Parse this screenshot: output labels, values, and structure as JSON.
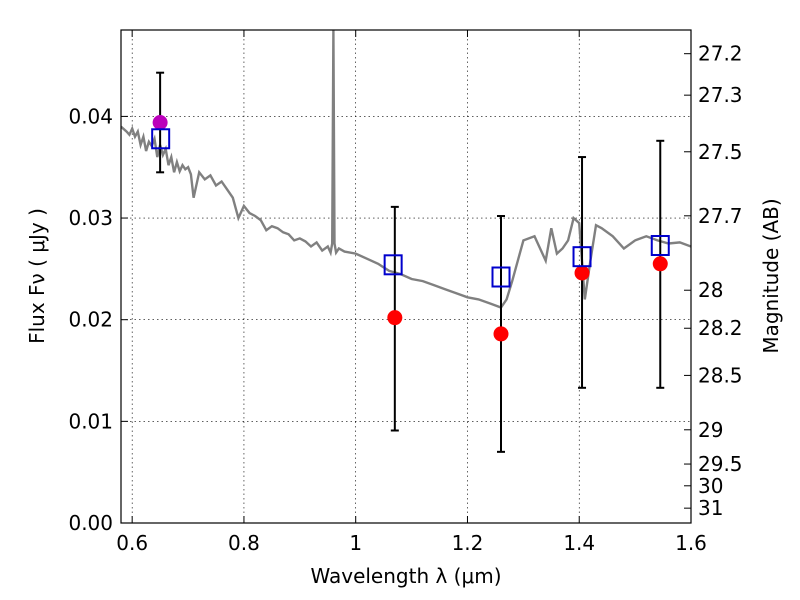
{
  "chart_data": {
    "type": "scatter",
    "xlabel": "Wavelength  λ (μm)",
    "ylabel": "Flux  Fν  ( μJy )",
    "y2label": "Magnitude (AB)",
    "xlim": [
      0.58,
      1.6
    ],
    "ylim": [
      0.0,
      0.0485
    ],
    "grid": true,
    "x_ticks": [
      0.6,
      0.8,
      1.0,
      1.2,
      1.4,
      1.6
    ],
    "x_tick_labels": [
      "0.6",
      "0.8",
      "1",
      "1.2",
      "1.4",
      "1.6"
    ],
    "y_ticks": [
      0.0,
      0.01,
      0.02,
      0.03,
      0.04
    ],
    "y_tick_labels": [
      "0.00",
      "0.01",
      "0.02",
      "0.03",
      "0.04"
    ],
    "mag_ticks": [
      {
        "flux": 0.04617,
        "label": "27.2"
      },
      {
        "flux": 0.04209,
        "label": "27.3"
      },
      {
        "flux": 0.03652,
        "label": "27.5"
      },
      {
        "flux": 0.03022,
        "label": "27.7"
      },
      {
        "flux": 0.0229,
        "label": "28"
      },
      {
        "flux": 0.01916,
        "label": "28.2"
      },
      {
        "flux": 0.01452,
        "label": "28.5"
      },
      {
        "flux": 0.00917,
        "label": "29"
      },
      {
        "flux": 0.0058,
        "label": "29.5"
      },
      {
        "flux": 0.00366,
        "label": "30"
      },
      {
        "flux": 0.00146,
        "label": "31"
      }
    ],
    "model_spectrum": {
      "color": "#808080",
      "x": [
        0.58,
        0.59,
        0.595,
        0.6,
        0.605,
        0.61,
        0.615,
        0.62,
        0.625,
        0.63,
        0.635,
        0.64,
        0.645,
        0.65,
        0.655,
        0.66,
        0.665,
        0.67,
        0.675,
        0.68,
        0.685,
        0.69,
        0.695,
        0.7,
        0.705,
        0.71,
        0.72,
        0.73,
        0.74,
        0.75,
        0.76,
        0.77,
        0.78,
        0.79,
        0.8,
        0.81,
        0.82,
        0.83,
        0.84,
        0.85,
        0.86,
        0.87,
        0.88,
        0.89,
        0.9,
        0.91,
        0.92,
        0.93,
        0.94,
        0.95,
        0.955,
        0.958,
        0.96,
        0.962,
        0.965,
        0.97,
        0.98,
        1.0,
        1.02,
        1.04,
        1.06,
        1.08,
        1.1,
        1.12,
        1.14,
        1.16,
        1.18,
        1.2,
        1.22,
        1.24,
        1.26,
        1.27,
        1.28,
        1.3,
        1.32,
        1.34,
        1.35,
        1.36,
        1.37,
        1.38,
        1.39,
        1.4,
        1.41,
        1.42,
        1.43,
        1.44,
        1.46,
        1.48,
        1.5,
        1.52,
        1.54,
        1.56,
        1.58,
        1.6
      ],
      "y": [
        0.039,
        0.0385,
        0.0382,
        0.0388,
        0.038,
        0.0385,
        0.0372,
        0.038,
        0.0366,
        0.0375,
        0.0371,
        0.0378,
        0.036,
        0.0372,
        0.0362,
        0.0368,
        0.0352,
        0.036,
        0.0345,
        0.0355,
        0.0346,
        0.0352,
        0.0348,
        0.035,
        0.0343,
        0.032,
        0.0345,
        0.0338,
        0.0342,
        0.0332,
        0.0336,
        0.0328,
        0.032,
        0.03,
        0.0312,
        0.0305,
        0.0302,
        0.0298,
        0.0288,
        0.0292,
        0.029,
        0.0286,
        0.0284,
        0.0278,
        0.028,
        0.0277,
        0.0272,
        0.0276,
        0.0268,
        0.0272,
        0.0266,
        0.0275,
        0.05,
        0.0275,
        0.0266,
        0.027,
        0.0267,
        0.0265,
        0.026,
        0.0255,
        0.0248,
        0.0245,
        0.024,
        0.0238,
        0.0234,
        0.023,
        0.0226,
        0.0222,
        0.022,
        0.0216,
        0.0212,
        0.022,
        0.0238,
        0.0278,
        0.0282,
        0.0258,
        0.029,
        0.0265,
        0.027,
        0.0278,
        0.03,
        0.0295,
        0.022,
        0.0258,
        0.0293,
        0.029,
        0.0282,
        0.027,
        0.0278,
        0.0282,
        0.0278,
        0.0275,
        0.0276,
        0.0272
      ]
    },
    "observed": {
      "color": "#ff0000",
      "points": [
        {
          "x": 1.07,
          "y": 0.0202,
          "yerr_low": 0.0091,
          "yerr_high": 0.0311
        },
        {
          "x": 1.26,
          "y": 0.0186,
          "yerr_low": 0.007,
          "yerr_high": 0.0302
        },
        {
          "x": 1.405,
          "y": 0.0246,
          "yerr_low": 0.0133,
          "yerr_high": 0.036
        },
        {
          "x": 1.545,
          "y": 0.0255,
          "yerr_low": 0.0133,
          "yerr_high": 0.0376
        }
      ]
    },
    "observed_optical": {
      "color": "#bb00bb",
      "points": [
        {
          "x": 0.65,
          "y": 0.0394,
          "yerr_low": 0.0345,
          "yerr_high": 0.0443
        }
      ]
    },
    "model_photometry": {
      "color": "#0000cc",
      "points": [
        {
          "x": 0.651,
          "y": 0.0378
        },
        {
          "x": 1.067,
          "y": 0.0254
        },
        {
          "x": 1.26,
          "y": 0.0242
        },
        {
          "x": 1.405,
          "y": 0.0262
        },
        {
          "x": 1.545,
          "y": 0.0273
        }
      ]
    }
  }
}
